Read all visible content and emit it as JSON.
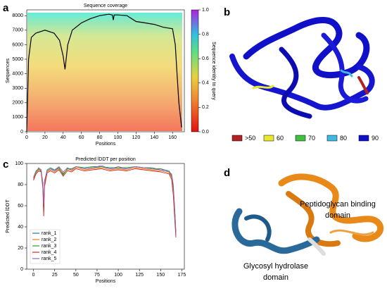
{
  "panels": [
    "a",
    "b",
    "c",
    "d"
  ],
  "chart_data": [
    {
      "type": "line",
      "title": "Sequence coverage",
      "xlabel": "Positions",
      "ylabel": "Sequences",
      "color": "#000000",
      "x": [
        0,
        2,
        5,
        10,
        20,
        30,
        36,
        40,
        42,
        45,
        50,
        60,
        70,
        80,
        90,
        94,
        95,
        96,
        100,
        110,
        120,
        130,
        140,
        150,
        160,
        163,
        165,
        167,
        170
      ],
      "values": [
        0,
        5000,
        6500,
        6800,
        7000,
        6800,
        6300,
        5200,
        4300,
        6000,
        7000,
        7500,
        7800,
        8000,
        8100,
        8050,
        7700,
        8050,
        8050,
        8000,
        7600,
        7500,
        7400,
        7200,
        7100,
        6000,
        4000,
        2000,
        300
      ],
      "xlim": [
        0,
        173
      ],
      "xticks": [
        0,
        20,
        40,
        60,
        80,
        100,
        120,
        140,
        160
      ],
      "ylim": [
        0,
        8400
      ],
      "yticks": [
        0,
        1000,
        2000,
        3000,
        4000,
        5000,
        6000,
        7000,
        8000
      ],
      "colorbar": {
        "label": "Sequence identity to query",
        "lim": [
          0,
          1
        ],
        "ticks": [
          {
            "value": 0,
            "label": "0.0"
          },
          {
            "value": 0.2,
            "label": "0.2"
          },
          {
            "value": 0.4,
            "label": "0.4"
          },
          {
            "value": 0.6,
            "label": "0.6"
          },
          {
            "value": 0.8,
            "label": "0.8"
          },
          {
            "value": 1,
            "label": "1.0"
          }
        ]
      }
    },
    {
      "type": "line",
      "title": "Predicted lDDT per position",
      "xlabel": "Positions",
      "ylabel": "Predicted lDDT",
      "x": [
        0,
        3,
        6,
        9,
        11,
        12,
        13,
        16,
        20,
        25,
        30,
        35,
        40,
        45,
        50,
        60,
        70,
        80,
        90,
        100,
        110,
        120,
        130,
        140,
        150,
        155,
        160,
        163,
        165,
        167,
        168
      ],
      "series": [
        {
          "name": "rank_1",
          "color": "#1f77b4",
          "values": [
            86,
            92,
            95,
            93,
            80,
            58,
            82,
            93,
            95,
            93,
            96,
            90,
            95,
            94,
            97,
            95,
            96,
            97,
            95,
            96,
            95,
            97,
            96,
            95,
            94,
            93,
            92,
            88,
            75,
            45,
            32
          ]
        },
        {
          "name": "rank_2",
          "color": "#ff7f0e",
          "values": [
            85,
            91,
            94,
            94,
            78,
            55,
            80,
            92,
            94,
            92,
            95,
            91,
            94,
            93,
            96,
            94,
            95,
            96,
            94,
            95,
            94,
            96,
            95,
            94,
            93,
            92,
            91,
            87,
            72,
            48,
            35
          ]
        },
        {
          "name": "rank_3",
          "color": "#2ca02c",
          "values": [
            87,
            93,
            95,
            92,
            82,
            60,
            83,
            94,
            96,
            94,
            96,
            89,
            95,
            95,
            97,
            96,
            97,
            97,
            96,
            96,
            96,
            97,
            96,
            95,
            95,
            94,
            93,
            89,
            78,
            50,
            36
          ]
        },
        {
          "name": "rank_4",
          "color": "#d62728",
          "values": [
            84,
            90,
            93,
            92,
            76,
            50,
            78,
            91,
            93,
            91,
            94,
            88,
            93,
            92,
            95,
            93,
            94,
            95,
            93,
            94,
            93,
            95,
            94,
            93,
            92,
            91,
            90,
            85,
            70,
            42,
            30
          ]
        },
        {
          "name": "rank_5",
          "color": "#9467bd",
          "values": [
            86,
            92,
            96,
            94,
            81,
            62,
            84,
            93,
            95,
            94,
            97,
            92,
            96,
            94,
            97,
            95,
            96,
            98,
            95,
            97,
            95,
            97,
            96,
            96,
            94,
            94,
            92,
            90,
            80,
            52,
            34
          ]
        }
      ],
      "xlim": [
        -8,
        178
      ],
      "xticks": [
        0,
        25,
        50,
        75,
        100,
        125,
        150,
        175
      ],
      "ylim": [
        0,
        100
      ],
      "yticks": [
        0,
        20,
        40,
        60,
        80,
        100
      ],
      "legend": "lower left"
    }
  ],
  "structure_b": {
    "legend": [
      {
        "label": ">50",
        "color": "#b22222"
      },
      {
        "label": "60",
        "color": "#e8e830"
      },
      {
        "label": "70",
        "color": "#40c040"
      },
      {
        "label": "80",
        "color": "#40b8e0"
      },
      {
        "label": "90",
        "color": "#1010c8"
      }
    ]
  },
  "structure_d": {
    "labels": [
      {
        "lines": [
          "Peptidoglycan binding",
          "domain"
        ]
      },
      {
        "lines": [
          "Glycosyl hydrolase",
          "domain"
        ]
      }
    ]
  }
}
